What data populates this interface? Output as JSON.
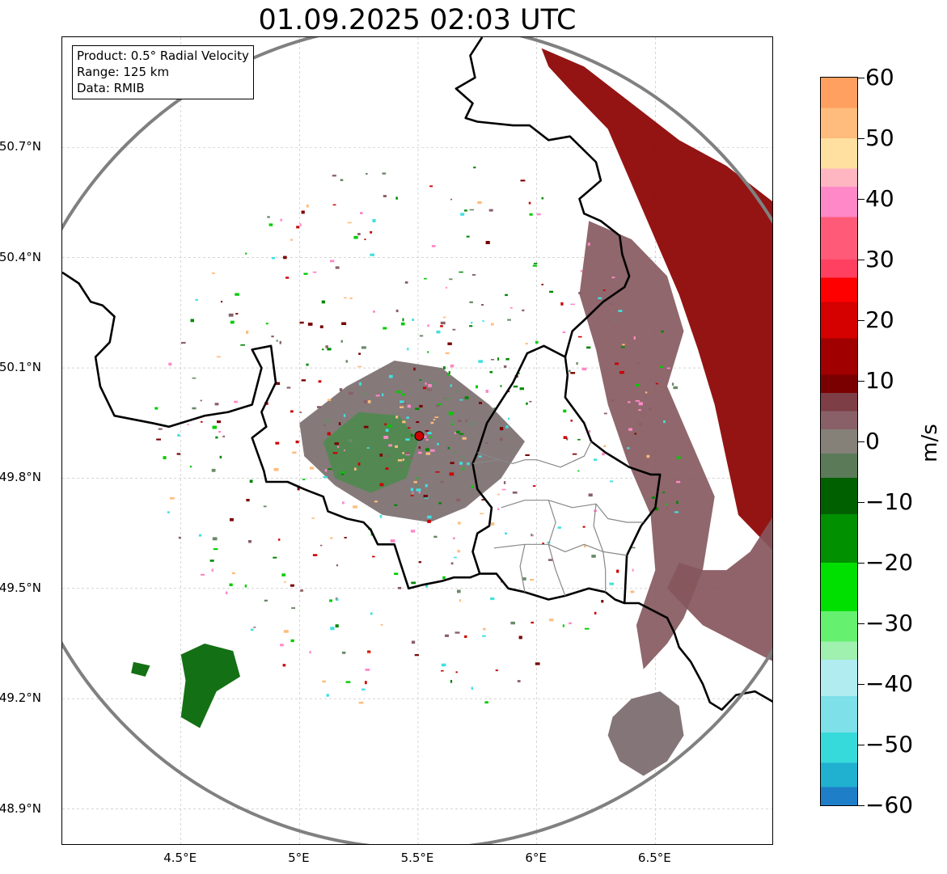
{
  "title": "01.09.2025 02:03 UTC",
  "info_box": {
    "product": "Product: 0.5° Radial Velocity",
    "range": "Range: 125 km",
    "data": "Data: RMIB"
  },
  "map": {
    "lon_range": [
      4.0,
      7.0
    ],
    "lat_range": [
      48.8,
      51.0
    ],
    "radar_site": {
      "lon": 5.505,
      "lat": 49.915,
      "color": "#cc0000"
    },
    "range_ring_km": 125,
    "grid": true,
    "lat_ticks": [
      {
        "value": 48.9,
        "label": "48.9°N"
      },
      {
        "value": 49.2,
        "label": "49.2°N"
      },
      {
        "value": 49.5,
        "label": "49.5°N"
      },
      {
        "value": 49.8,
        "label": "49.8°N"
      },
      {
        "value": 50.1,
        "label": "50.1°N"
      },
      {
        "value": 50.4,
        "label": "50.4°N"
      },
      {
        "value": 50.7,
        "label": "50.7°N"
      }
    ],
    "lon_ticks": [
      {
        "value": 4.5,
        "label": "4.5°E"
      },
      {
        "value": 5.0,
        "label": "5°E"
      },
      {
        "value": 5.5,
        "label": "5.5°E"
      },
      {
        "value": 6.0,
        "label": "6°E"
      },
      {
        "value": 6.5,
        "label": "6.5°E"
      }
    ],
    "country_borders": [
      [
        [
          4.0,
          50.36
        ],
        [
          4.07,
          50.33
        ],
        [
          4.12,
          50.28
        ],
        [
          4.17,
          50.27
        ],
        [
          4.22,
          50.24
        ],
        [
          4.2,
          50.17
        ],
        [
          4.14,
          50.13
        ],
        [
          4.16,
          50.05
        ],
        [
          4.22,
          49.97
        ],
        [
          4.38,
          49.95
        ],
        [
          4.45,
          49.94
        ],
        [
          4.6,
          49.97
        ],
        [
          4.7,
          49.98
        ],
        [
          4.8,
          50.0
        ],
        [
          4.84,
          50.1
        ],
        [
          4.8,
          50.15
        ],
        [
          4.88,
          50.16
        ],
        [
          4.9,
          50.06
        ],
        [
          4.84,
          49.98
        ],
        [
          4.86,
          49.94
        ],
        [
          4.8,
          49.91
        ],
        [
          4.85,
          49.82
        ],
        [
          4.86,
          49.79
        ],
        [
          4.95,
          49.79
        ],
        [
          5.02,
          49.77
        ],
        [
          5.1,
          49.75
        ],
        [
          5.12,
          49.71
        ],
        [
          5.2,
          49.69
        ],
        [
          5.27,
          49.68
        ],
        [
          5.3,
          49.66
        ],
        [
          5.33,
          49.62
        ],
        [
          5.4,
          49.62
        ],
        [
          5.42,
          49.58
        ],
        [
          5.46,
          49.5
        ],
        [
          5.52,
          49.51
        ],
        [
          5.6,
          49.52
        ],
        [
          5.65,
          49.53
        ],
        [
          5.72,
          49.53
        ],
        [
          5.76,
          49.54
        ],
        [
          5.83,
          49.54
        ],
        [
          5.88,
          49.5
        ],
        [
          5.95,
          49.49
        ],
        [
          6.05,
          49.47
        ],
        [
          6.12,
          49.48
        ],
        [
          6.22,
          49.5
        ],
        [
          6.29,
          49.49
        ],
        [
          6.33,
          49.47
        ],
        [
          6.37,
          49.46
        ],
        [
          6.43,
          49.46
        ],
        [
          6.55,
          49.42
        ],
        [
          6.58,
          49.38
        ],
        [
          6.6,
          49.34
        ],
        [
          6.65,
          49.3
        ],
        [
          6.7,
          49.24
        ],
        [
          6.73,
          49.19
        ],
        [
          6.78,
          49.17
        ],
        [
          6.84,
          49.21
        ],
        [
          6.92,
          49.22
        ],
        [
          7.0,
          49.19
        ]
      ],
      [
        [
          5.76,
          49.54
        ],
        [
          5.73,
          49.6
        ],
        [
          5.75,
          49.65
        ],
        [
          5.8,
          49.67
        ],
        [
          5.81,
          49.72
        ],
        [
          5.75,
          49.77
        ],
        [
          5.73,
          49.84
        ],
        [
          5.75,
          49.87
        ],
        [
          5.79,
          49.95
        ],
        [
          5.84,
          50.0
        ],
        [
          5.9,
          50.06
        ],
        [
          5.96,
          50.14
        ],
        [
          6.03,
          50.16
        ],
        [
          6.12,
          50.13
        ],
        [
          6.13,
          50.08
        ],
        [
          6.12,
          50.02
        ],
        [
          6.2,
          49.95
        ],
        [
          6.23,
          49.9
        ],
        [
          6.29,
          49.87
        ],
        [
          6.39,
          49.83
        ],
        [
          6.48,
          49.81
        ],
        [
          6.52,
          49.81
        ],
        [
          6.5,
          49.72
        ],
        [
          6.44,
          49.67
        ],
        [
          6.38,
          49.59
        ],
        [
          6.37,
          49.46
        ]
      ],
      [
        [
          6.12,
          50.13
        ],
        [
          6.15,
          50.2
        ],
        [
          6.2,
          50.23
        ],
        [
          6.28,
          50.28
        ],
        [
          6.37,
          50.32
        ],
        [
          6.39,
          50.35
        ],
        [
          6.36,
          50.41
        ],
        [
          6.35,
          50.46
        ],
        [
          6.27,
          50.5
        ],
        [
          6.2,
          50.52
        ],
        [
          6.18,
          50.56
        ],
        [
          6.27,
          50.61
        ],
        [
          6.25,
          50.66
        ],
        [
          6.14,
          50.73
        ],
        [
          6.05,
          50.72
        ],
        [
          5.97,
          50.76
        ],
        [
          5.9,
          50.76
        ],
        [
          5.75,
          50.77
        ],
        [
          5.7,
          50.78
        ],
        [
          5.73,
          50.82
        ],
        [
          5.66,
          50.86
        ],
        [
          5.74,
          50.89
        ],
        [
          5.72,
          50.95
        ],
        [
          5.77,
          51.0
        ]
      ]
    ],
    "admin_borders": [
      [
        [
          5.75,
          49.87
        ],
        [
          5.84,
          49.85
        ],
        [
          5.9,
          49.84
        ],
        [
          5.95,
          49.85
        ],
        [
          6.0,
          49.85
        ],
        [
          6.1,
          49.83
        ],
        [
          6.2,
          49.86
        ],
        [
          6.23,
          49.9
        ]
      ],
      [
        [
          5.73,
          49.84
        ],
        [
          5.84,
          49.85
        ]
      ],
      [
        [
          5.85,
          49.72
        ],
        [
          5.95,
          49.74
        ],
        [
          6.05,
          49.74
        ],
        [
          6.15,
          49.72
        ],
        [
          6.25,
          49.73
        ],
        [
          6.3,
          49.69
        ],
        [
          6.38,
          49.68
        ],
        [
          6.45,
          49.68
        ]
      ],
      [
        [
          5.82,
          49.61
        ],
        [
          5.95,
          49.62
        ],
        [
          6.05,
          49.62
        ],
        [
          6.12,
          49.6
        ],
        [
          6.2,
          49.62
        ],
        [
          6.28,
          49.6
        ],
        [
          6.38,
          49.59
        ]
      ],
      [
        [
          6.05,
          49.74
        ],
        [
          6.08,
          49.68
        ],
        [
          6.05,
          49.62
        ],
        [
          6.08,
          49.55
        ],
        [
          6.12,
          49.48
        ]
      ],
      [
        [
          6.25,
          49.73
        ],
        [
          6.24,
          49.67
        ],
        [
          6.28,
          49.6
        ],
        [
          6.29,
          49.55
        ],
        [
          6.29,
          49.49
        ]
      ],
      [
        [
          5.95,
          49.62
        ],
        [
          5.93,
          49.56
        ],
        [
          5.95,
          49.49
        ]
      ]
    ],
    "echo_clusters": [
      {
        "name": "eastern-band-receding",
        "polygon": [
          [
            6.02,
            50.97
          ],
          [
            6.2,
            50.92
          ],
          [
            6.4,
            50.82
          ],
          [
            6.6,
            50.72
          ],
          [
            6.8,
            50.65
          ],
          [
            7.0,
            50.55
          ],
          [
            7.0,
            49.6
          ],
          [
            6.85,
            49.7
          ],
          [
            6.8,
            49.85
          ],
          [
            6.75,
            50.0
          ],
          [
            6.68,
            50.15
          ],
          [
            6.6,
            50.3
          ],
          [
            6.5,
            50.45
          ],
          [
            6.4,
            50.6
          ],
          [
            6.3,
            50.75
          ],
          [
            6.15,
            50.85
          ],
          [
            6.05,
            50.92
          ]
        ],
        "color": "#8b0000"
      },
      {
        "name": "eastern-band-inner",
        "polygon": [
          [
            6.22,
            50.5
          ],
          [
            6.4,
            50.45
          ],
          [
            6.55,
            50.35
          ],
          [
            6.62,
            50.2
          ],
          [
            6.55,
            50.05
          ],
          [
            6.65,
            49.9
          ],
          [
            6.75,
            49.75
          ],
          [
            6.7,
            49.55
          ],
          [
            6.62,
            49.42
          ],
          [
            6.55,
            49.35
          ],
          [
            6.45,
            49.28
          ],
          [
            6.42,
            49.4
          ],
          [
            6.5,
            49.55
          ],
          [
            6.48,
            49.7
          ],
          [
            6.38,
            49.85
          ],
          [
            6.3,
            50.0
          ],
          [
            6.25,
            50.15
          ],
          [
            6.18,
            50.3
          ]
        ],
        "color": "#855a5f"
      },
      {
        "name": "south-east-band",
        "polygon": [
          [
            6.55,
            49.5
          ],
          [
            6.7,
            49.4
          ],
          [
            6.85,
            49.35
          ],
          [
            7.0,
            49.3
          ],
          [
            7.0,
            49.7
          ],
          [
            6.9,
            49.6
          ],
          [
            6.8,
            49.55
          ],
          [
            6.7,
            49.55
          ],
          [
            6.6,
            49.57
          ]
        ],
        "color": "#86565c"
      },
      {
        "name": "south-east-cell",
        "polygon": [
          [
            6.32,
            49.15
          ],
          [
            6.4,
            49.2
          ],
          [
            6.52,
            49.22
          ],
          [
            6.6,
            49.18
          ],
          [
            6.62,
            49.1
          ],
          [
            6.55,
            49.03
          ],
          [
            6.45,
            48.99
          ],
          [
            6.35,
            49.03
          ],
          [
            6.3,
            49.1
          ]
        ],
        "color": "#7a6a6d"
      },
      {
        "name": "radar-clutter",
        "polygon": [
          [
            5.0,
            49.95
          ],
          [
            5.2,
            50.05
          ],
          [
            5.4,
            50.12
          ],
          [
            5.6,
            50.1
          ],
          [
            5.8,
            50.0
          ],
          [
            5.95,
            49.9
          ],
          [
            5.85,
            49.8
          ],
          [
            5.7,
            49.72
          ],
          [
            5.55,
            49.68
          ],
          [
            5.35,
            49.7
          ],
          [
            5.15,
            49.78
          ],
          [
            5.02,
            49.86
          ]
        ],
        "color": "#7b6e6f"
      },
      {
        "name": "clutter-core-green",
        "polygon": [
          [
            5.1,
            49.9
          ],
          [
            5.25,
            49.98
          ],
          [
            5.42,
            49.97
          ],
          [
            5.5,
            49.9
          ],
          [
            5.45,
            49.8
          ],
          [
            5.3,
            49.76
          ],
          [
            5.15,
            49.8
          ]
        ],
        "color": "#4f8a4f"
      },
      {
        "name": "south-west-cells",
        "polygon": [
          [
            4.5,
            49.32
          ],
          [
            4.6,
            49.35
          ],
          [
            4.72,
            49.33
          ],
          [
            4.75,
            49.26
          ],
          [
            4.65,
            49.22
          ],
          [
            4.58,
            49.12
          ],
          [
            4.5,
            49.15
          ],
          [
            4.52,
            49.25
          ]
        ],
        "color": "#006400"
      },
      {
        "name": "south-west-cell-small",
        "polygon": [
          [
            4.3,
            49.3
          ],
          [
            4.37,
            49.29
          ],
          [
            4.35,
            49.26
          ],
          [
            4.29,
            49.27
          ]
        ],
        "color": "#006400"
      }
    ]
  },
  "colorbar": {
    "unit": "m/s",
    "min": -60,
    "max": 60,
    "ticks": [
      {
        "value": 60,
        "label": "60"
      },
      {
        "value": 50,
        "label": "50"
      },
      {
        "value": 40,
        "label": "40"
      },
      {
        "value": 30,
        "label": "30"
      },
      {
        "value": 20,
        "label": "20"
      },
      {
        "value": 10,
        "label": "10"
      },
      {
        "value": 0,
        "label": "0"
      },
      {
        "value": -10,
        "label": "−10"
      },
      {
        "value": -20,
        "label": "−20"
      },
      {
        "value": -30,
        "label": "−30"
      },
      {
        "value": -40,
        "label": "−40"
      },
      {
        "value": -50,
        "label": "−50"
      },
      {
        "value": -60,
        "label": "−60"
      }
    ],
    "bands": [
      {
        "from": 55,
        "to": 60,
        "color": "#ffa060"
      },
      {
        "from": 50,
        "to": 55,
        "color": "#ffbc7c"
      },
      {
        "from": 45,
        "to": 50,
        "color": "#ffe0a0"
      },
      {
        "from": 42,
        "to": 45,
        "color": "#ffb6c1"
      },
      {
        "from": 37,
        "to": 42,
        "color": "#ff88c8"
      },
      {
        "from": 30,
        "to": 37,
        "color": "#ff5a78"
      },
      {
        "from": 27,
        "to": 30,
        "color": "#ff4060"
      },
      {
        "from": 23,
        "to": 27,
        "color": "#ff0000"
      },
      {
        "from": 17,
        "to": 23,
        "color": "#d50000"
      },
      {
        "from": 11,
        "to": 17,
        "color": "#a00000"
      },
      {
        "from": 8,
        "to": 11,
        "color": "#7a0000"
      },
      {
        "from": 5,
        "to": 8,
        "color": "#7d3e46"
      },
      {
        "from": 2,
        "to": 5,
        "color": "#8a6068"
      },
      {
        "from": -2,
        "to": 2,
        "color": "#858078"
      },
      {
        "from": -6,
        "to": -2,
        "color": "#5a7a58"
      },
      {
        "from": -12,
        "to": -6,
        "color": "#006000"
      },
      {
        "from": -20,
        "to": -12,
        "color": "#009000"
      },
      {
        "from": -28,
        "to": -20,
        "color": "#00e000"
      },
      {
        "from": -33,
        "to": -28,
        "color": "#66f070"
      },
      {
        "from": -36,
        "to": -33,
        "color": "#a0f0b0"
      },
      {
        "from": -42,
        "to": -36,
        "color": "#b0ecf0"
      },
      {
        "from": -48,
        "to": -42,
        "color": "#7ee0e8"
      },
      {
        "from": -53,
        "to": -48,
        "color": "#36dada"
      },
      {
        "from": -57,
        "to": -53,
        "color": "#20b0d0"
      },
      {
        "from": -60,
        "to": -57,
        "color": "#1e7ec8"
      }
    ]
  }
}
